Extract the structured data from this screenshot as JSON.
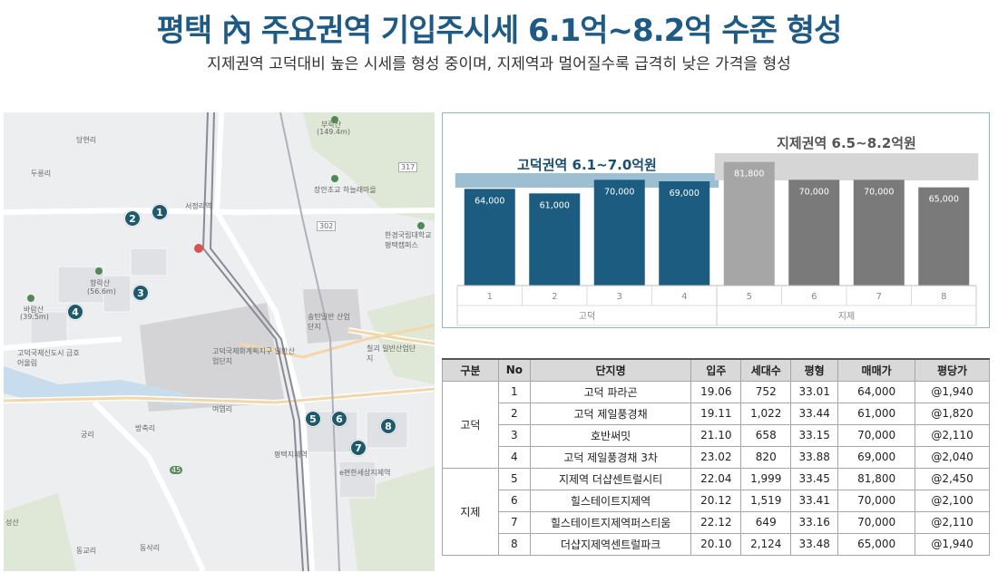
{
  "header": {
    "title": "평택 內 주요권역 기입주시세 6.1억~8.2억 수준 형성",
    "subtitle": "지제권역 고덕대비 높은 시세를 형성 중이며, 지제역과 멀어질수록 급격히 낮은 가격을 형성"
  },
  "map": {
    "labels": {
      "dangheon": "당현리",
      "durung": "두릉리",
      "seojeong": "서정리역",
      "buraksan": "부락산",
      "buraksan_h": "(149.4m)",
      "hwangjong": "장안초교 하늘래마을",
      "univ": "한경국립대학교 평택캠퍼스",
      "hyangsan": "향락산",
      "hyangsan_h": "(56.6m)",
      "barae": "바람산",
      "barae_h": "(39.5m)",
      "songtan": "송탄일반 산업단지",
      "godeok_nat": "고덕국제화계획지구 일반산업단지",
      "godeok_sin": "고덕국제신도시 금호어울림",
      "chilgoe": "칠괴 일반산업단지",
      "yeogyeom": "여염리",
      "bangchuk": "방축리",
      "gungri": "궁리",
      "pyeongtaek_jije": "평택지제역",
      "dongsak": "동삭리",
      "dongmak": "동교리",
      "jije_green": "e편한세상지제역",
      "seongsan": "성산",
      "road_317": "317",
      "road_302": "302",
      "road_45": "45"
    }
  },
  "chart_data": {
    "type": "bar",
    "categories": [
      "1",
      "2",
      "3",
      "4",
      "5",
      "6",
      "7",
      "8"
    ],
    "values": [
      64000,
      61000,
      70000,
      69000,
      81800,
      70000,
      70000,
      65000
    ],
    "value_labels": [
      "64,000",
      "61,000",
      "70,000",
      "69,000",
      "81,800",
      "70,000",
      "70,000",
      "65,000"
    ],
    "groups": [
      {
        "name": "고덕",
        "range_label": "고덕권역 6.1~7.0억원",
        "indices": [
          0,
          1,
          2,
          3
        ]
      },
      {
        "name": "지제",
        "range_label": "지제권역 6.5~8.2억원",
        "indices": [
          4,
          5,
          6,
          7
        ]
      }
    ],
    "colors": {
      "godeok": "#1b5c80",
      "jije_first": "#a6a6a6",
      "jije": "#7a7a7a",
      "godeok_band": "#9dbfd3",
      "jije_band": "#d6d6d6"
    }
  },
  "table": {
    "headers": [
      "구분",
      "No",
      "단지명",
      "입주",
      "세대수",
      "평형",
      "매매가",
      "평당가"
    ],
    "groups": [
      {
        "name": "고덕",
        "rows": [
          [
            "1",
            "고덕 파라곤",
            "19.06",
            "752",
            "33.01",
            "64,000",
            "@1,940"
          ],
          [
            "2",
            "고덕 제일풍경채",
            "19.11",
            "1,022",
            "33.44",
            "61,000",
            "@1,820"
          ],
          [
            "3",
            "호반써밋",
            "21.10",
            "658",
            "33.15",
            "70,000",
            "@2,110"
          ],
          [
            "4",
            "고덕 제일풍경채 3차",
            "23.02",
            "820",
            "33.88",
            "69,000",
            "@2,040"
          ]
        ]
      },
      {
        "name": "지제",
        "rows": [
          [
            "5",
            "지제역 더샵센트럴시티",
            "22.04",
            "1,999",
            "33.45",
            "81,800",
            "@2,450"
          ],
          [
            "6",
            "힐스테이트지제역",
            "20.12",
            "1,519",
            "33.41",
            "70,000",
            "@2,100"
          ],
          [
            "7",
            "힐스테이트지제역퍼스티움",
            "22.12",
            "649",
            "33.16",
            "70,000",
            "@2,110"
          ],
          [
            "8",
            "더샵지제역센트럴파크",
            "20.10",
            "2,124",
            "33.48",
            "65,000",
            "@1,940"
          ]
        ]
      }
    ]
  }
}
